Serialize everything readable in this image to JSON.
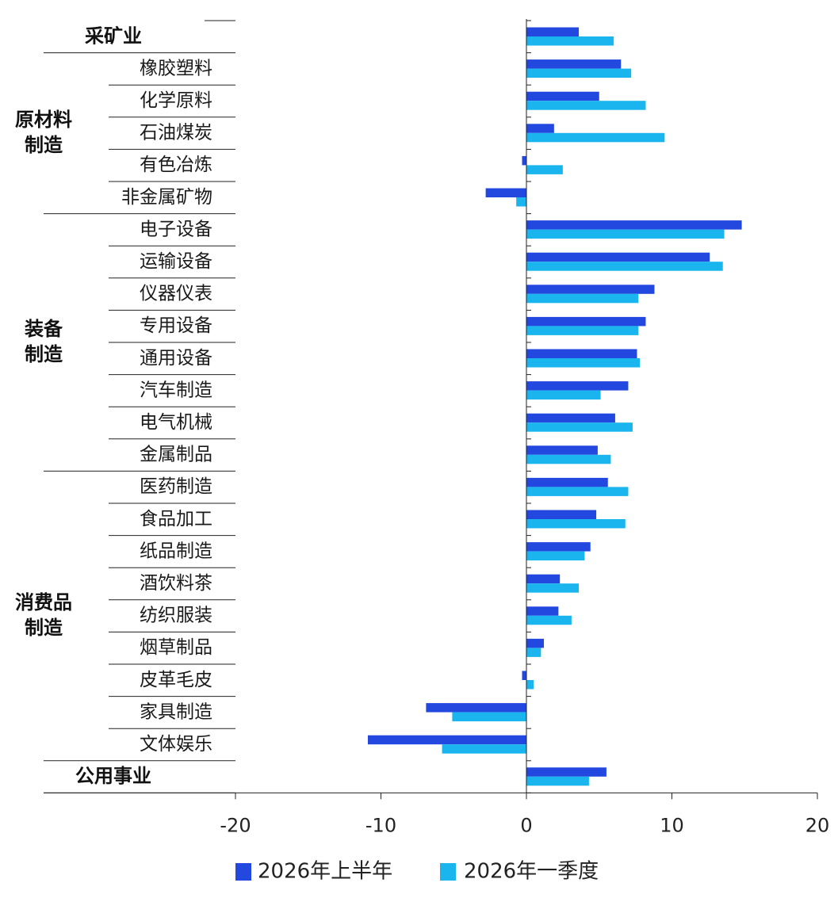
{
  "chart_data": {
    "type": "bar",
    "orientation": "horizontal",
    "title": "",
    "xlabel": "",
    "ylabel": "",
    "xlim": [
      -20,
      20
    ],
    "xticks": [
      -20,
      -10,
      0,
      10,
      20
    ],
    "tick_labels": [
      "-20",
      "-10",
      "0",
      "10",
      "20"
    ],
    "grid": false,
    "legend_position": "bottom",
    "categories": [
      "采矿业",
      "橡胶塑料",
      "化学原料",
      "石油煤炭",
      "有色冶炼",
      "非金属矿物",
      "电子设备",
      "运输设备",
      "仪器仪表",
      "专用设备",
      "通用设备",
      "汽车制造",
      "电气机械",
      "金属制品",
      "医药制造",
      "食品加工",
      "纸品制造",
      "酒饮料茶",
      "纺织服装",
      "烟草制品",
      "皮革毛皮",
      "家具制造",
      "文体娱乐",
      "公用事业"
    ],
    "bold_categories": [
      "采矿业",
      "公用事业"
    ],
    "groups": [
      {
        "label_lines": [
          "原材料",
          "制造"
        ],
        "first": 1,
        "last": 5
      },
      {
        "label_lines": [
          "装备",
          "制造"
        ],
        "first": 6,
        "last": 13
      },
      {
        "label_lines": [
          "消费品",
          "制造"
        ],
        "first": 14,
        "last": 22
      }
    ],
    "series": [
      {
        "name": "2026年上半年",
        "color": "#2348e0",
        "values": [
          3.6,
          6.5,
          5.0,
          1.9,
          -0.3,
          -2.8,
          14.8,
          12.6,
          8.8,
          8.2,
          7.6,
          7.0,
          6.1,
          4.9,
          5.6,
          4.8,
          4.4,
          2.3,
          2.2,
          1.2,
          -0.3,
          -6.9,
          -10.9,
          5.5
        ]
      },
      {
        "name": "2026年一季度",
        "color": "#1ab5ee",
        "values": [
          6.0,
          7.2,
          8.2,
          9.5,
          2.5,
          -0.7,
          13.6,
          13.5,
          7.7,
          7.7,
          7.8,
          5.1,
          7.3,
          5.8,
          7.0,
          6.8,
          4.0,
          3.6,
          3.1,
          1.0,
          0.5,
          -5.1,
          -5.8,
          4.3
        ]
      }
    ]
  }
}
